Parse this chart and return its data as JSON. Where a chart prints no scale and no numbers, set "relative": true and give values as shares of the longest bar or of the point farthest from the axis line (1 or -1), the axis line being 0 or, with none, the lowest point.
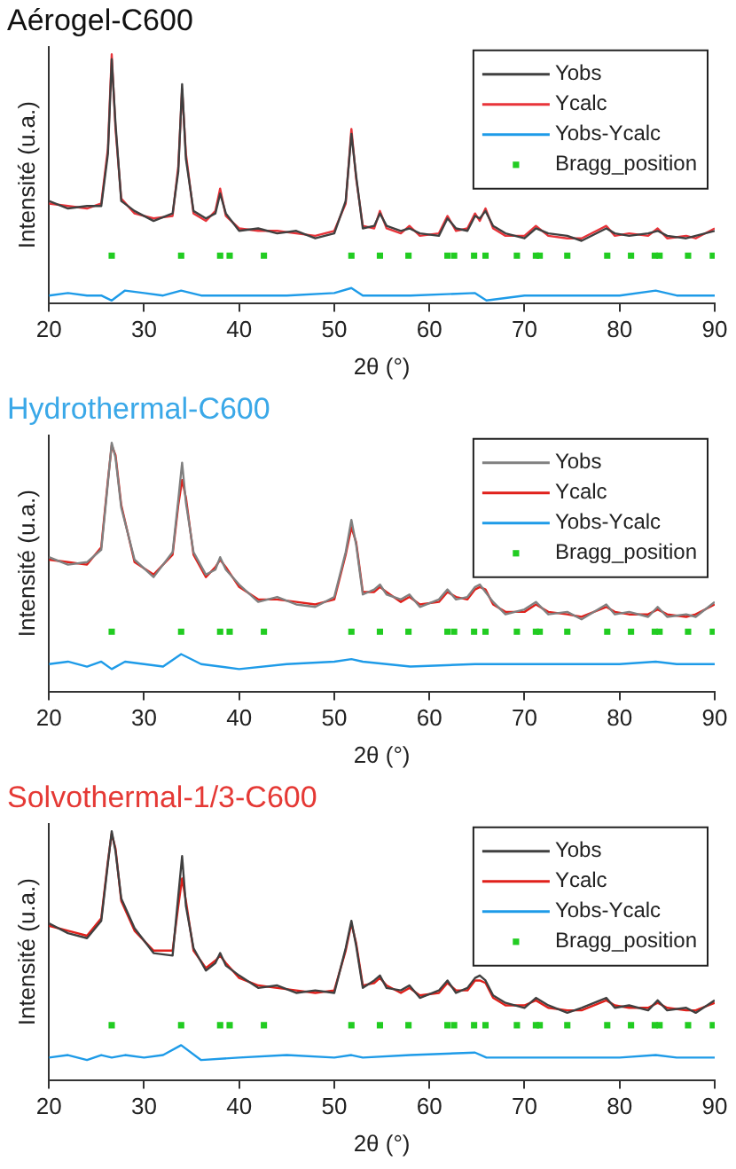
{
  "chart_data": [
    {
      "type": "line",
      "title": "Aérogel-C600",
      "xlabel": "2θ (°)",
      "ylabel": "Intensité (u.a.)",
      "relative": true,
      "xlim": [
        20,
        90
      ],
      "xticks": [
        20,
        30,
        40,
        50,
        60,
        70,
        80,
        90
      ],
      "legend": "top right",
      "x": [
        20,
        22,
        24,
        25.5,
        26.2,
        26.6,
        27,
        27.6,
        29,
        31,
        33,
        33.6,
        34,
        34.4,
        35.2,
        36.5,
        37.5,
        38,
        38.6,
        40,
        42,
        44,
        46,
        48,
        50,
        51.2,
        51.8,
        52.3,
        53,
        54.2,
        54.8,
        55.5,
        57,
        57.9,
        59,
        61,
        61.9,
        62.8,
        64,
        64.8,
        65.3,
        65.9,
        66.7,
        68,
        70,
        71.2,
        72.5,
        74.5,
        76,
        78.6,
        79.5,
        81,
        83,
        84,
        85,
        87,
        88,
        90
      ],
      "series": [
        {
          "name": "Yobs",
          "type": "line",
          "color": "#404040",
          "values": [
            0.41,
            0.38,
            0.39,
            0.39,
            0.6,
            0.98,
            0.72,
            0.41,
            0.37,
            0.33,
            0.36,
            0.53,
            0.88,
            0.58,
            0.37,
            0.34,
            0.36,
            0.44,
            0.36,
            0.29,
            0.3,
            0.28,
            0.29,
            0.26,
            0.28,
            0.41,
            0.68,
            0.51,
            0.3,
            0.31,
            0.36,
            0.31,
            0.29,
            0.3,
            0.28,
            0.27,
            0.34,
            0.3,
            0.29,
            0.35,
            0.34,
            0.37,
            0.31,
            0.28,
            0.26,
            0.3,
            0.28,
            0.27,
            0.25,
            0.3,
            0.28,
            0.27,
            0.28,
            0.29,
            0.27,
            0.26,
            0.27,
            0.29
          ]
        },
        {
          "name": "Ycalc",
          "type": "line",
          "color": "#e8343a",
          "values": [
            0.4,
            0.39,
            0.38,
            0.4,
            0.62,
            1.0,
            0.7,
            0.42,
            0.36,
            0.34,
            0.35,
            0.55,
            0.86,
            0.6,
            0.36,
            0.33,
            0.37,
            0.46,
            0.35,
            0.3,
            0.29,
            0.29,
            0.28,
            0.27,
            0.29,
            0.4,
            0.7,
            0.5,
            0.31,
            0.3,
            0.37,
            0.3,
            0.28,
            0.31,
            0.27,
            0.28,
            0.35,
            0.29,
            0.3,
            0.36,
            0.33,
            0.38,
            0.3,
            0.27,
            0.27,
            0.31,
            0.27,
            0.26,
            0.26,
            0.31,
            0.27,
            0.28,
            0.27,
            0.3,
            0.26,
            0.27,
            0.26,
            0.3
          ]
        },
        {
          "name": "Yobs-Ycalc",
          "type": "line",
          "color": "#1e9be8",
          "x": [
            20,
            22,
            24,
            25.5,
            26.6,
            28,
            30,
            32,
            33.9,
            36,
            40,
            45,
            50,
            51.8,
            53,
            58,
            64.8,
            66,
            70,
            75,
            80,
            83.8,
            86,
            90
          ],
          "values": [
            0.03,
            0.04,
            0.03,
            0.03,
            0.01,
            0.05,
            0.04,
            0.03,
            0.05,
            0.03,
            0.03,
            0.03,
            0.04,
            0.06,
            0.03,
            0.03,
            0.04,
            0.01,
            0.03,
            0.03,
            0.03,
            0.05,
            0.03,
            0.03
          ]
        },
        {
          "name": "Bragg_position",
          "type": "scatter",
          "marker": "square",
          "color": "#22cc22",
          "x": [
            26.6,
            33.9,
            38.0,
            39.0,
            42.6,
            51.8,
            54.8,
            57.8,
            61.9,
            62.6,
            64.7,
            65.9,
            69.2,
            71.2,
            71.6,
            74.5,
            78.7,
            81.2,
            83.7,
            84.2,
            87.2,
            89.8
          ],
          "values": [
            0.19,
            0.19,
            0.19,
            0.19,
            0.19,
            0.19,
            0.19,
            0.19,
            0.19,
            0.19,
            0.19,
            0.19,
            0.19,
            0.19,
            0.19,
            0.19,
            0.19,
            0.19,
            0.19,
            0.19,
            0.19,
            0.19
          ]
        }
      ]
    },
    {
      "type": "line",
      "title": "Hydrothermal-C600",
      "xlabel": "2θ (°)",
      "ylabel": "Intensité (u.a.)",
      "relative": true,
      "xlim": [
        20,
        90
      ],
      "xticks": [
        20,
        30,
        40,
        50,
        60,
        70,
        80,
        90
      ],
      "legend": "top right",
      "x": [
        20,
        22,
        24,
        25.5,
        26.2,
        26.6,
        27,
        27.6,
        29,
        31,
        33,
        33.6,
        34,
        34.4,
        35.2,
        36.5,
        37.5,
        38,
        38.6,
        40,
        42,
        44,
        46,
        48,
        50,
        51.2,
        51.8,
        52.3,
        53,
        54.2,
        54.8,
        55.5,
        57,
        57.9,
        59,
        61,
        61.9,
        62.8,
        64,
        64.8,
        65.3,
        65.9,
        66.7,
        68,
        70,
        71.2,
        72.5,
        74.5,
        76,
        78.6,
        79.5,
        81,
        83,
        84,
        85,
        87,
        88,
        90
      ],
      "series": [
        {
          "name": "Yobs",
          "type": "line",
          "color": "#808080",
          "values": [
            0.54,
            0.51,
            0.52,
            0.57,
            0.84,
            1.0,
            0.94,
            0.74,
            0.53,
            0.46,
            0.56,
            0.77,
            0.92,
            0.76,
            0.56,
            0.47,
            0.49,
            0.54,
            0.49,
            0.43,
            0.36,
            0.38,
            0.35,
            0.34,
            0.38,
            0.56,
            0.69,
            0.59,
            0.39,
            0.41,
            0.43,
            0.39,
            0.37,
            0.39,
            0.34,
            0.37,
            0.41,
            0.37,
            0.38,
            0.42,
            0.43,
            0.4,
            0.36,
            0.31,
            0.33,
            0.36,
            0.31,
            0.32,
            0.29,
            0.35,
            0.31,
            0.32,
            0.3,
            0.34,
            0.3,
            0.31,
            0.3,
            0.36
          ]
        },
        {
          "name": "Ycalc",
          "type": "line",
          "color": "#e0201b",
          "values": [
            0.53,
            0.52,
            0.51,
            0.58,
            0.85,
            0.99,
            0.95,
            0.75,
            0.52,
            0.47,
            0.55,
            0.75,
            0.85,
            0.78,
            0.55,
            0.46,
            0.5,
            0.53,
            0.5,
            0.42,
            0.37,
            0.37,
            0.36,
            0.35,
            0.37,
            0.55,
            0.66,
            0.6,
            0.4,
            0.4,
            0.42,
            0.4,
            0.36,
            0.38,
            0.35,
            0.36,
            0.4,
            0.38,
            0.37,
            0.41,
            0.42,
            0.41,
            0.35,
            0.32,
            0.32,
            0.35,
            0.32,
            0.31,
            0.3,
            0.34,
            0.32,
            0.31,
            0.31,
            0.33,
            0.31,
            0.3,
            0.31,
            0.35
          ]
        },
        {
          "name": "Yobs-Ycalc",
          "type": "line",
          "color": "#1e9be8",
          "x": [
            20,
            22,
            24,
            25.5,
            26.6,
            28,
            30,
            32,
            33.9,
            36,
            40,
            45,
            50,
            51.8,
            53,
            58,
            64.8,
            66,
            70,
            75,
            80,
            83.8,
            86,
            90
          ],
          "values": [
            0.11,
            0.12,
            0.1,
            0.12,
            0.09,
            0.12,
            0.11,
            0.1,
            0.15,
            0.11,
            0.09,
            0.11,
            0.12,
            0.13,
            0.12,
            0.1,
            0.11,
            0.11,
            0.11,
            0.11,
            0.11,
            0.12,
            0.11,
            0.11
          ]
        },
        {
          "name": "Bragg_position",
          "type": "scatter",
          "marker": "square",
          "color": "#22cc22",
          "x": [
            26.6,
            33.9,
            38.0,
            39.0,
            42.6,
            51.8,
            54.8,
            57.8,
            61.9,
            62.6,
            64.7,
            65.9,
            69.2,
            71.2,
            71.6,
            74.5,
            78.7,
            81.2,
            83.7,
            84.2,
            87.2,
            89.8
          ],
          "values": [
            0.24,
            0.24,
            0.24,
            0.24,
            0.24,
            0.24,
            0.24,
            0.24,
            0.24,
            0.24,
            0.24,
            0.24,
            0.24,
            0.24,
            0.24,
            0.24,
            0.24,
            0.24,
            0.24,
            0.24,
            0.24,
            0.24
          ]
        }
      ]
    },
    {
      "type": "line",
      "title": "Solvothermal-1/3-C600",
      "xlabel": "2θ (°)",
      "ylabel": "Intensité (u.a.)",
      "relative": true,
      "xlim": [
        20,
        90
      ],
      "xticks": [
        20,
        30,
        40,
        50,
        60,
        70,
        80,
        90
      ],
      "legend": "top right",
      "x": [
        20,
        22,
        24,
        25.5,
        26.2,
        26.6,
        27,
        27.6,
        29,
        31,
        33,
        33.6,
        34,
        34.4,
        35.2,
        36.5,
        37.5,
        38,
        38.6,
        40,
        42,
        44,
        46,
        48,
        50,
        51.2,
        51.8,
        52.3,
        53,
        54.2,
        54.8,
        55.5,
        57,
        57.9,
        59,
        61,
        61.9,
        62.8,
        64,
        64.8,
        65.3,
        65.9,
        66.7,
        68,
        70,
        71.2,
        72.5,
        74.5,
        76,
        78.6,
        79.5,
        81,
        83,
        84,
        85,
        87,
        88,
        90
      ],
      "series": [
        {
          "name": "Yobs",
          "type": "line",
          "color": "#404040",
          "values": [
            0.63,
            0.59,
            0.57,
            0.64,
            0.87,
            1.0,
            0.92,
            0.73,
            0.61,
            0.51,
            0.5,
            0.74,
            0.9,
            0.7,
            0.53,
            0.44,
            0.47,
            0.51,
            0.46,
            0.42,
            0.37,
            0.38,
            0.35,
            0.36,
            0.35,
            0.53,
            0.64,
            0.54,
            0.37,
            0.4,
            0.42,
            0.37,
            0.36,
            0.38,
            0.33,
            0.36,
            0.4,
            0.35,
            0.37,
            0.41,
            0.42,
            0.4,
            0.34,
            0.31,
            0.29,
            0.33,
            0.3,
            0.27,
            0.29,
            0.33,
            0.29,
            0.3,
            0.28,
            0.32,
            0.28,
            0.29,
            0.27,
            0.32
          ]
        },
        {
          "name": "Ycalc",
          "type": "line",
          "color": "#e0201b",
          "values": [
            0.62,
            0.6,
            0.58,
            0.65,
            0.88,
            0.99,
            0.93,
            0.72,
            0.6,
            0.52,
            0.52,
            0.7,
            0.81,
            0.72,
            0.52,
            0.45,
            0.48,
            0.5,
            0.47,
            0.41,
            0.38,
            0.37,
            0.36,
            0.35,
            0.36,
            0.52,
            0.63,
            0.55,
            0.38,
            0.39,
            0.41,
            0.38,
            0.35,
            0.37,
            0.34,
            0.35,
            0.39,
            0.36,
            0.36,
            0.4,
            0.4,
            0.39,
            0.33,
            0.3,
            0.3,
            0.32,
            0.29,
            0.28,
            0.28,
            0.32,
            0.3,
            0.29,
            0.29,
            0.31,
            0.29,
            0.28,
            0.28,
            0.31
          ]
        },
        {
          "name": "Yobs-Ycalc",
          "type": "line",
          "color": "#1e9be8",
          "x": [
            20,
            22,
            24,
            25.5,
            26.6,
            28,
            30,
            32,
            33.9,
            36,
            40,
            45,
            50,
            51.8,
            53,
            58,
            64.8,
            66,
            70,
            75,
            80,
            83.8,
            86,
            90
          ],
          "values": [
            0.09,
            0.1,
            0.08,
            0.1,
            0.09,
            0.1,
            0.09,
            0.1,
            0.14,
            0.08,
            0.09,
            0.1,
            0.09,
            0.1,
            0.09,
            0.1,
            0.11,
            0.09,
            0.09,
            0.09,
            0.09,
            0.1,
            0.09,
            0.09
          ]
        },
        {
          "name": "Bragg_position",
          "type": "scatter",
          "marker": "square",
          "color": "#22cc22",
          "x": [
            26.6,
            33.9,
            38.0,
            39.0,
            42.6,
            51.8,
            54.8,
            57.8,
            61.9,
            62.6,
            64.7,
            65.9,
            69.2,
            71.2,
            71.6,
            74.5,
            78.7,
            81.2,
            83.7,
            84.2,
            87.2,
            89.8
          ],
          "values": [
            0.22,
            0.22,
            0.22,
            0.22,
            0.22,
            0.22,
            0.22,
            0.22,
            0.22,
            0.22,
            0.22,
            0.22,
            0.22,
            0.22,
            0.22,
            0.22,
            0.22,
            0.22,
            0.22,
            0.22,
            0.22,
            0.22
          ]
        }
      ]
    }
  ]
}
